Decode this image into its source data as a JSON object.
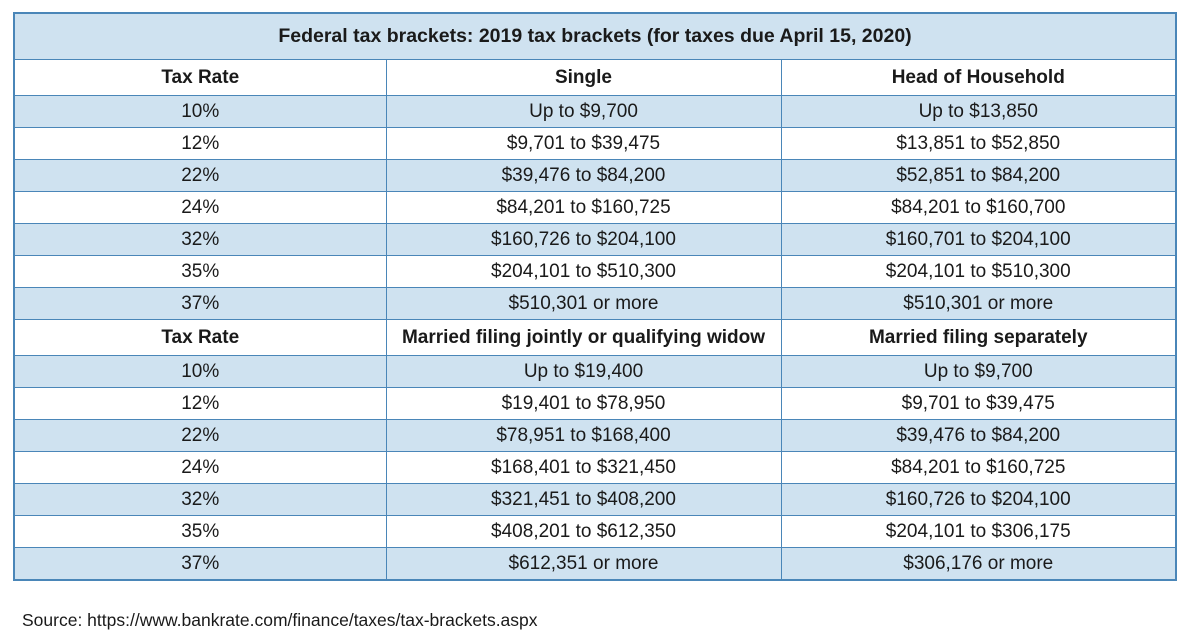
{
  "title": "Federal tax brackets: 2019 tax brackets (for taxes due April 15, 2020)",
  "colors": {
    "border": "#4a86b8",
    "shaded_row": "#cfe2f0",
    "plain_row": "#ffffff"
  },
  "sections": [
    {
      "headers": [
        "Tax Rate",
        "Single",
        "Head of Household"
      ],
      "rows": [
        [
          "10%",
          "Up to $9,700",
          "Up to $13,850"
        ],
        [
          "12%",
          "$9,701 to $39,475",
          "$13,851 to $52,850"
        ],
        [
          "22%",
          "$39,476 to $84,200",
          "$52,851 to $84,200"
        ],
        [
          "24%",
          "$84,201 to $160,725",
          "$84,201 to $160,700"
        ],
        [
          "32%",
          "$160,726 to $204,100",
          "$160,701 to $204,100"
        ],
        [
          "35%",
          "$204,101 to $510,300",
          "$204,101 to $510,300"
        ],
        [
          "37%",
          "$510,301 or more",
          "$510,301 or more"
        ]
      ]
    },
    {
      "headers": [
        "Tax Rate",
        "Married filing jointly or qualifying widow",
        "Married filing separately"
      ],
      "rows": [
        [
          "10%",
          "Up to $19,400",
          "Up to $9,700"
        ],
        [
          "12%",
          "$19,401 to $78,950",
          "$9,701 to $39,475"
        ],
        [
          "22%",
          "$78,951 to $168,400",
          "$39,476 to $84,200"
        ],
        [
          "24%",
          "$168,401 to $321,450",
          "$84,201 to $160,725"
        ],
        [
          "32%",
          "$321,451 to $408,200",
          "$160,726 to $204,100"
        ],
        [
          "35%",
          "$408,201 to $612,350",
          "$204,101 to $306,175"
        ],
        [
          "37%",
          "$612,351 or more",
          "$306,176 or more"
        ]
      ]
    }
  ],
  "source": "Source: https://www.bankrate.com/finance/taxes/tax-brackets.aspx"
}
